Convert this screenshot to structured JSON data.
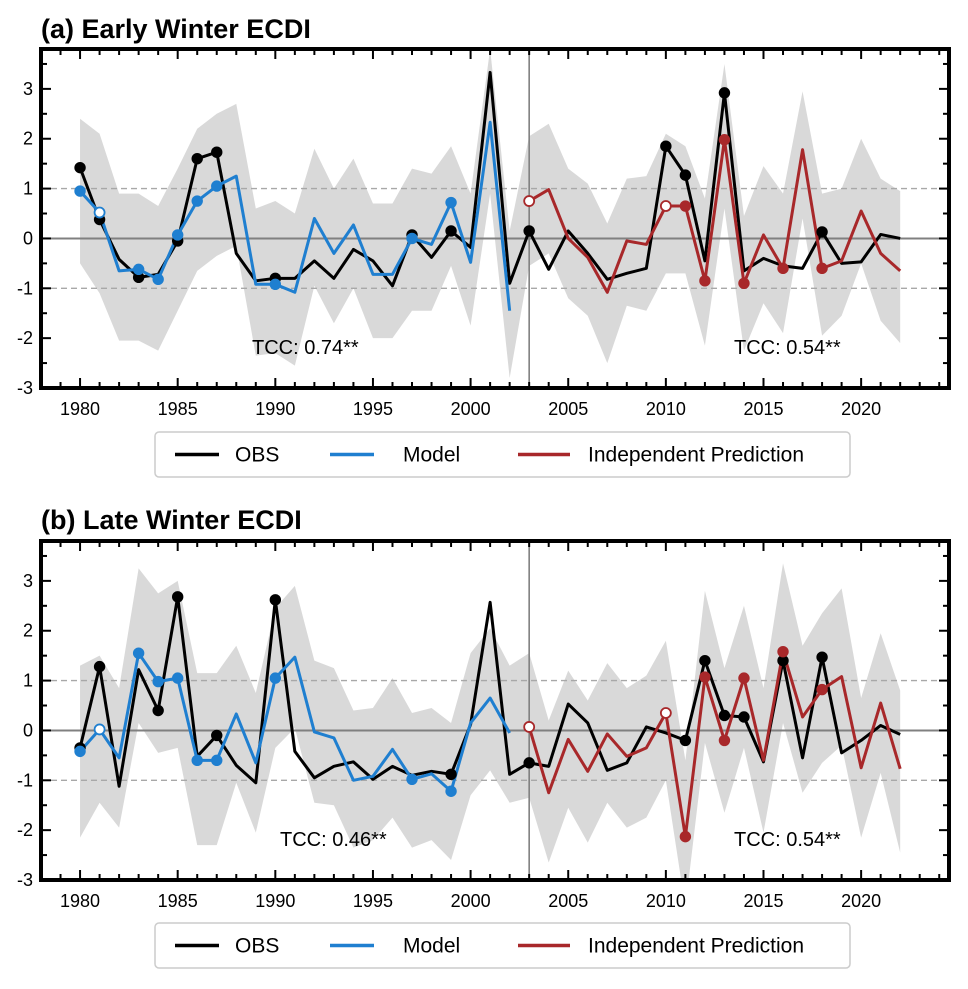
{
  "chart_data": [
    {
      "type": "line",
      "title": "(a) Early Winter ECDI",
      "xlabel": "",
      "ylabel": "",
      "xlim": [
        1978,
        2024.5
      ],
      "ylim": [
        -3,
        3.8
      ],
      "xticks": [
        1980,
        1985,
        1990,
        1995,
        2000,
        2005,
        2010,
        2015,
        2020
      ],
      "yticks": [
        -3,
        -2,
        -1,
        0,
        1,
        2,
        3
      ],
      "reference_lines": {
        "solid": [
          0
        ],
        "dashed": [
          1,
          -1
        ]
      },
      "vertical_line_x": 2003,
      "annotations": [
        "TCC: 0.74**",
        "TCC: 0.54**"
      ],
      "legend": [
        "OBS",
        "Model",
        "Independent Prediction"
      ],
      "legend_position": "bottom-center",
      "colors": {
        "OBS": "#000000",
        "Model": "#1f7fd0",
        "Independent Prediction": "#a8282a",
        "band": "#d9d9d9"
      },
      "obs": {
        "x": [
          1980,
          1981,
          1982,
          1983,
          1984,
          1985,
          1986,
          1987,
          1988,
          1989,
          1990,
          1991,
          1992,
          1993,
          1994,
          1995,
          1996,
          1997,
          1998,
          1999,
          2000,
          2001,
          2002,
          2003,
          2004,
          2005,
          2006,
          2007,
          2008,
          2009,
          2010,
          2011,
          2012,
          2013,
          2014,
          2015,
          2016,
          2017,
          2018,
          2019,
          2020,
          2021,
          2022
        ],
        "y": [
          1.42,
          0.38,
          -0.42,
          -0.78,
          -0.72,
          -0.05,
          1.6,
          1.73,
          -0.3,
          -0.85,
          -0.8,
          -0.8,
          -0.45,
          -0.8,
          -0.22,
          -0.45,
          -0.95,
          0.07,
          -0.38,
          0.15,
          -0.18,
          3.33,
          -0.9,
          0.15,
          -0.62,
          0.15,
          -0.3,
          -0.82,
          -0.7,
          -0.6,
          1.85,
          1.27,
          -0.45,
          2.92,
          -0.65,
          -0.4,
          -0.55,
          -0.6,
          0.13,
          -0.5,
          -0.47,
          0.08,
          0.0
        ],
        "markers_filled": [
          1980,
          1981,
          1983,
          1985,
          1986,
          1987,
          1990,
          1997,
          1999,
          2003,
          2010,
          2011,
          2013,
          2018
        ]
      },
      "model": {
        "x": [
          1980,
          1981,
          1982,
          1983,
          1984,
          1985,
          1986,
          1987,
          1988,
          1989,
          1990,
          1991,
          1992,
          1993,
          1994,
          1995,
          1996,
          1997,
          1998,
          1999,
          2000,
          2001,
          2002
        ],
        "y": [
          0.95,
          0.52,
          -0.65,
          -0.62,
          -0.82,
          0.07,
          0.75,
          1.05,
          1.25,
          -0.92,
          -0.92,
          -1.08,
          0.4,
          -0.3,
          0.27,
          -0.72,
          -0.72,
          0.0,
          -0.12,
          0.72,
          -0.48,
          2.33,
          -1.45
        ],
        "markers_filled": [
          1980,
          1983,
          1984,
          1985,
          1986,
          1987,
          1990,
          1997,
          1999
        ],
        "markers_open": [
          1981
        ]
      },
      "prediction": {
        "x": [
          2003,
          2004,
          2005,
          2006,
          2007,
          2008,
          2009,
          2010,
          2011,
          2012,
          2013,
          2014,
          2015,
          2016,
          2017,
          2018,
          2019,
          2020,
          2021,
          2022
        ],
        "y": [
          0.75,
          0.98,
          0.0,
          -0.38,
          -1.08,
          -0.05,
          -0.12,
          0.65,
          0.65,
          -0.85,
          1.98,
          -0.9,
          0.07,
          -0.6,
          1.78,
          -0.6,
          -0.45,
          0.55,
          -0.3,
          -0.65
        ],
        "markers_filled": [
          2011,
          2012,
          2013,
          2014,
          2016,
          2018
        ],
        "markers_open": [
          2003,
          2010
        ]
      },
      "band": {
        "x": [
          1980,
          1981,
          1982,
          1983,
          1984,
          1985,
          1986,
          1987,
          1988,
          1989,
          1990,
          1991,
          1992,
          1993,
          1994,
          1995,
          1996,
          1997,
          1998,
          1999,
          2000,
          2001,
          2002,
          2003,
          2004,
          2005,
          2006,
          2007,
          2008,
          2009,
          2010,
          2011,
          2012,
          2013,
          2014,
          2015,
          2016,
          2017,
          2018,
          2019,
          2020,
          2021,
          2022
        ],
        "upper": [
          2.4,
          2.1,
          0.9,
          0.9,
          0.65,
          1.4,
          2.2,
          2.5,
          2.7,
          0.6,
          0.75,
          0.5,
          1.8,
          1.0,
          1.6,
          0.7,
          0.7,
          1.4,
          1.3,
          1.85,
          0.9,
          3.8,
          0.15,
          2.05,
          2.3,
          1.4,
          1.1,
          0.3,
          1.2,
          1.25,
          2.1,
          1.85,
          0.8,
          3.5,
          0.45,
          1.45,
          0.9,
          2.95,
          0.9,
          1.0,
          2.0,
          1.2,
          0.95
        ],
        "lower": [
          -0.5,
          -1.1,
          -2.05,
          -2.05,
          -2.25,
          -1.45,
          -0.65,
          -0.35,
          -0.15,
          -2.35,
          -2.3,
          -2.55,
          -0.95,
          -1.7,
          -1.0,
          -2.0,
          -2.0,
          -1.45,
          -1.45,
          -0.55,
          -1.75,
          0.9,
          -2.8,
          -0.55,
          -0.3,
          -1.2,
          -1.55,
          -2.5,
          -1.35,
          -1.45,
          -0.7,
          -0.7,
          -2.15,
          0.6,
          -2.25,
          -1.3,
          -1.9,
          0.4,
          -1.95,
          -1.55,
          -0.5,
          -1.65,
          -2.1
        ]
      }
    },
    {
      "type": "line",
      "title": "(b) Late Winter ECDI",
      "xlabel": "",
      "ylabel": "",
      "xlim": [
        1978,
        2024.5
      ],
      "ylim": [
        -3,
        3.8
      ],
      "xticks": [
        1980,
        1985,
        1990,
        1995,
        2000,
        2005,
        2010,
        2015,
        2020
      ],
      "yticks": [
        -3,
        -2,
        -1,
        0,
        1,
        2,
        3
      ],
      "reference_lines": {
        "solid": [
          0
        ],
        "dashed": [
          1,
          -1
        ]
      },
      "vertical_line_x": 2003,
      "annotations": [
        "TCC: 0.46**",
        "TCC: 0.54**"
      ],
      "legend": [
        "OBS",
        "Model",
        "Independent Prediction"
      ],
      "legend_position": "bottom-center",
      "colors": {
        "OBS": "#000000",
        "Model": "#1f7fd0",
        "Independent Prediction": "#a8282a",
        "band": "#d9d9d9"
      },
      "obs": {
        "x": [
          1980,
          1981,
          1982,
          1983,
          1984,
          1985,
          1986,
          1987,
          1988,
          1989,
          1990,
          1991,
          1992,
          1993,
          1994,
          1995,
          1996,
          1997,
          1998,
          1999,
          2000,
          2001,
          2002,
          2003,
          2004,
          2005,
          2006,
          2007,
          2008,
          2009,
          2010,
          2011,
          2012,
          2013,
          2014,
          2015,
          2016,
          2017,
          2018,
          2019,
          2020,
          2021,
          2022
        ],
        "y": [
          -0.35,
          1.28,
          -1.12,
          1.22,
          0.4,
          2.68,
          -0.52,
          -0.1,
          -0.7,
          -1.05,
          2.62,
          -0.42,
          -0.95,
          -0.72,
          -0.63,
          -0.98,
          -0.72,
          -0.9,
          -0.82,
          -0.88,
          0.12,
          2.57,
          -0.88,
          -0.65,
          -0.72,
          0.53,
          0.15,
          -0.8,
          -0.65,
          0.07,
          -0.05,
          -0.2,
          1.4,
          0.3,
          0.27,
          -0.63,
          1.4,
          -0.55,
          1.47,
          -0.45,
          -0.2,
          0.1,
          -0.08
        ],
        "markers_filled": [
          1980,
          1981,
          1984,
          1985,
          1987,
          1990,
          1999,
          2003,
          2011,
          2012,
          2013,
          2014,
          2016,
          2018
        ]
      },
      "model": {
        "x": [
          1980,
          1981,
          1982,
          1983,
          1984,
          1985,
          1986,
          1987,
          1988,
          1989,
          1990,
          1991,
          1992,
          1993,
          1994,
          1995,
          1996,
          1997,
          1998,
          1999,
          2000,
          2001,
          2002
        ],
        "y": [
          -0.42,
          0.02,
          -0.55,
          1.55,
          0.98,
          1.05,
          -0.6,
          -0.6,
          0.33,
          -0.65,
          1.05,
          1.47,
          -0.03,
          -0.15,
          -1.0,
          -0.92,
          -0.38,
          -0.98,
          -0.87,
          -1.22,
          0.15,
          0.65,
          -0.05
        ],
        "markers_filled": [
          1980,
          1983,
          1984,
          1985,
          1986,
          1987,
          1990,
          1997,
          1999
        ],
        "markers_open": [
          1981
        ]
      },
      "prediction": {
        "x": [
          2003,
          2004,
          2005,
          2006,
          2007,
          2008,
          2009,
          2010,
          2011,
          2012,
          2013,
          2014,
          2015,
          2016,
          2017,
          2018,
          2019,
          2020,
          2021,
          2022
        ],
        "y": [
          0.07,
          -1.25,
          -0.18,
          -0.82,
          -0.07,
          -0.52,
          -0.35,
          0.35,
          -2.13,
          1.07,
          -0.2,
          1.05,
          -0.6,
          1.58,
          0.27,
          0.82,
          1.08,
          -0.75,
          0.55,
          -0.77
        ],
        "markers_filled": [
          2011,
          2012,
          2013,
          2014,
          2016,
          2018
        ],
        "markers_open": [
          2003,
          2010
        ]
      },
      "band": {
        "x": [
          1980,
          1981,
          1982,
          1983,
          1984,
          1985,
          1986,
          1987,
          1988,
          1989,
          1990,
          1991,
          1992,
          1993,
          1994,
          1995,
          1996,
          1997,
          1998,
          1999,
          2000,
          2001,
          2002,
          2003,
          2004,
          2005,
          2006,
          2007,
          2008,
          2009,
          2010,
          2011,
          2012,
          2013,
          2014,
          2015,
          2016,
          2017,
          2018,
          2019,
          2020,
          2021,
          2022
        ],
        "upper": [
          1.3,
          1.5,
          0.85,
          3.25,
          2.75,
          3.0,
          1.15,
          1.15,
          1.7,
          0.75,
          2.45,
          2.9,
          1.4,
          1.25,
          0.4,
          0.45,
          1.05,
          0.35,
          0.45,
          0.15,
          1.55,
          2.05,
          1.3,
          1.55,
          0.2,
          1.2,
          0.6,
          1.35,
          0.85,
          1.1,
          1.8,
          -0.6,
          2.8,
          1.25,
          2.5,
          0.85,
          3.35,
          1.7,
          2.35,
          2.85,
          0.65,
          1.95,
          0.8
        ],
        "lower": [
          -2.15,
          -1.45,
          -1.95,
          0.15,
          -0.45,
          -0.35,
          -2.3,
          -2.3,
          -1.05,
          -2.05,
          -0.35,
          0.05,
          -1.45,
          -1.5,
          -2.35,
          -2.2,
          -1.75,
          -2.35,
          -2.2,
          -2.6,
          -1.3,
          -0.8,
          -1.45,
          -1.35,
          -2.65,
          -1.55,
          -2.25,
          -1.45,
          -1.95,
          -1.75,
          -1.0,
          -3.55,
          -0.25,
          -1.65,
          -0.35,
          -2.05,
          0.15,
          -1.25,
          -0.65,
          -0.3,
          -2.15,
          -0.85,
          -2.45
        ]
      }
    }
  ]
}
